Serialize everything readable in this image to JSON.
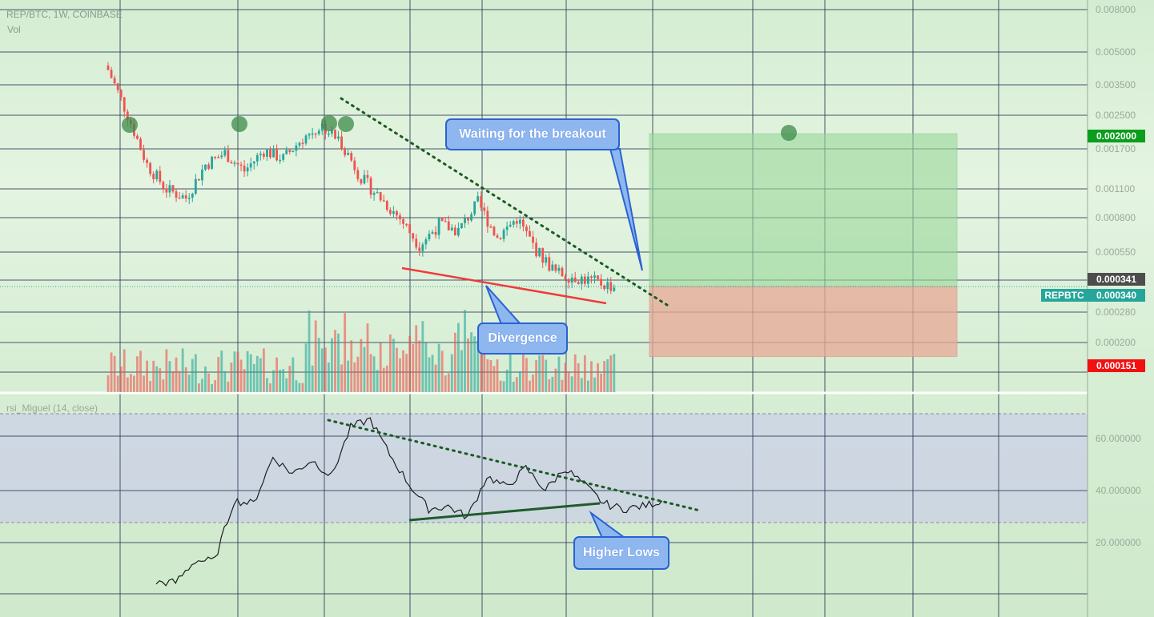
{
  "header": {
    "symbol": "REP/BTC, 1W, COINBASE",
    "volume_label": "Vol",
    "rsi_label": "rsi_Miguel (14, close)"
  },
  "price_axis": {
    "ticks": [
      "0.008000",
      "0.005000",
      "0.003500",
      "0.002500",
      "0.001700",
      "0.001100",
      "0.000800",
      "0.000550",
      "0.000280",
      "0.000200"
    ]
  },
  "rsi_axis": {
    "ticks": [
      "60.000000",
      "40.000000",
      "20.000000"
    ]
  },
  "badges": {
    "target": "0.002000",
    "current": "0.000341",
    "last": "0.000340",
    "symbol": "REPBTC",
    "stop": "0.000151"
  },
  "annotations": {
    "breakout": "Waiting for the breakout",
    "divergence": "Divergence",
    "higher_lows": "Higher Lows"
  },
  "colors": {
    "up": "#26a69a",
    "down": "#ef5350",
    "divergence_line": "#ef3b3b",
    "higher_lows_line": "#1f5c2b",
    "trendline": "#1d5a25",
    "target_zone": "#9ad89a",
    "stop_zone": "#e8a996",
    "marker": "#3e8a4a"
  },
  "chart_data": [
    {
      "type": "candlestick",
      "title": "REP/BTC, 1W, COINBASE",
      "y_scale": "log",
      "ylim": [
        0.0001,
        0.009
      ],
      "series": [
        {
          "name": "REP/BTC",
          "x_index": [
            0,
            6,
            12,
            18,
            24,
            30,
            36,
            42,
            48,
            54,
            60,
            66,
            72,
            78,
            84,
            90,
            96,
            102,
            108,
            114,
            120,
            126,
            132,
            138,
            144,
            150,
            156
          ],
          "close": [
            0.0042,
            0.0025,
            0.0014,
            0.00105,
            0.00095,
            0.0014,
            0.0016,
            0.0013,
            0.00165,
            0.0015,
            0.0019,
            0.0022,
            0.0018,
            0.0012,
            0.00095,
            0.00075,
            0.00055,
            0.0007,
            0.00065,
            0.0009,
            0.0006,
            0.00075,
            0.00052,
            0.0004,
            0.00038,
            0.00036,
            0.00034
          ]
        }
      ],
      "trade_setup": {
        "entry": 0.00034,
        "target": 0.002,
        "stop": 0.000151
      }
    },
    {
      "type": "line",
      "title": "rsi_Miguel (14, close)",
      "ylim": [
        0,
        75
      ],
      "series": [
        {
          "name": "rsi_Miguel (14, close)",
          "x_index": [
            0,
            6,
            12,
            18,
            24,
            30,
            36,
            42,
            48,
            54,
            60,
            66,
            72,
            78,
            84,
            90,
            96,
            102,
            108,
            114,
            120,
            126,
            132,
            138,
            144,
            150,
            156
          ],
          "values": [
            8,
            8,
            16,
            16,
            38,
            37,
            54,
            48,
            53,
            47,
            65,
            68,
            55,
            44,
            35,
            36,
            32,
            47,
            43,
            50,
            42,
            50,
            44,
            37,
            35,
            36,
            38
          ]
        }
      ]
    }
  ]
}
